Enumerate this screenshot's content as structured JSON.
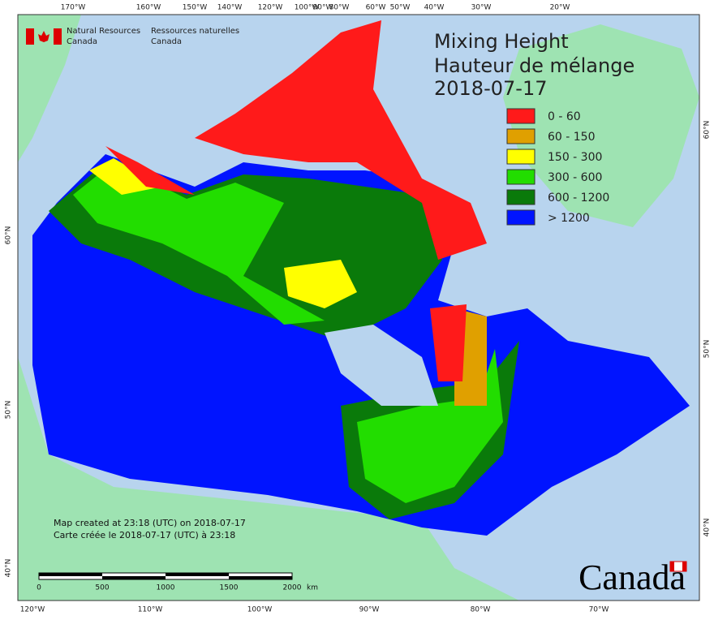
{
  "agency": {
    "english": [
      "Natural Resources",
      "Canada"
    ],
    "french": [
      "Ressources naturelles",
      "Canada"
    ]
  },
  "title": [
    "Mixing Height",
    "Hauteur de mélange",
    "2018-07-17"
  ],
  "legend": [
    {
      "label": "0 - 60",
      "color": "#ff1a1a"
    },
    {
      "label": "60 - 150",
      "color": "#e0a000"
    },
    {
      "label": "150 - 300",
      "color": "#ffff00"
    },
    {
      "label": "300 - 600",
      "color": "#22dd00"
    },
    {
      "label": "600 - 1200",
      "color": "#0a7a0a"
    },
    {
      "label": "> 1200",
      "color": "#0014ff"
    }
  ],
  "top_ticks": [
    "170°W",
    "160°W",
    "150°W",
    "140°W",
    "120°W",
    "100°W",
    "90°W",
    "80°W",
    "60°W",
    "50°W",
    "40°W",
    "30°W",
    "20°W"
  ],
  "bottom_ticks": [
    "120°W",
    "110°W",
    "100°W",
    "90°W",
    "80°W",
    "70°W"
  ],
  "left_ticks": [
    "60°N",
    "50°N",
    "40°N"
  ],
  "right_ticks": [
    "60°N",
    "50°N",
    "40°N"
  ],
  "credits": [
    "Map created at 23:18 (UTC) on 2018-07-17",
    "Carte créée le 2018-07-17 (UTC) à 23:18"
  ],
  "scale_bar": {
    "labels": [
      "0",
      "500",
      "1000",
      "1500",
      "2000"
    ],
    "unit": "km"
  },
  "wordmark": "Canada"
}
